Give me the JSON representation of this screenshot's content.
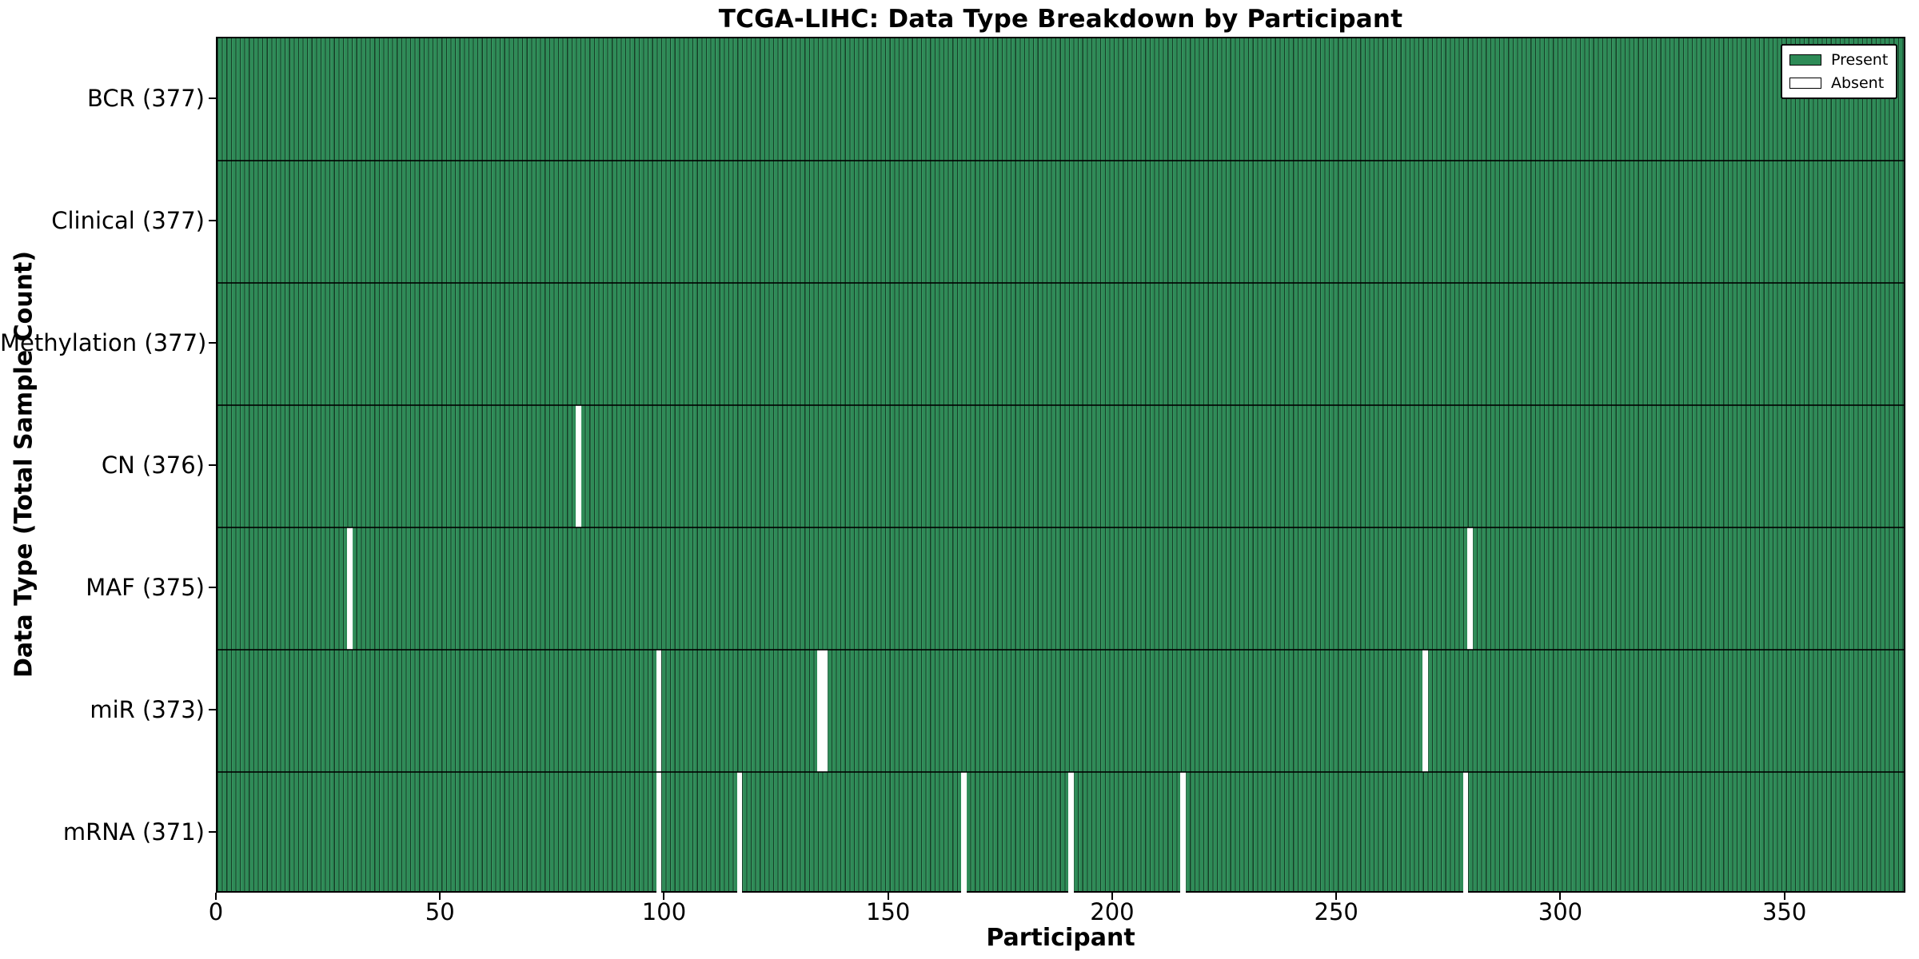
{
  "title": "TCGA-LIHC: Data Type Breakdown by Participant",
  "x_axis_title": "Participant",
  "y_axis_title": "Data Type (Total Sample Count)",
  "legend": {
    "present_label": "Present",
    "absent_label": "Absent"
  },
  "colors": {
    "present": "#2e8b57",
    "absent": "#ffffff",
    "bar_edge": "#000000",
    "plot_border": "#000000"
  },
  "chart_data": {
    "type": "heatmap",
    "title": "TCGA-LIHC: Data Type Breakdown by Participant",
    "xlabel": "Participant",
    "ylabel": "Data Type (Total Sample Count)",
    "x_range": [
      0,
      377
    ],
    "x_ticks": [
      0,
      50,
      100,
      150,
      200,
      250,
      300,
      350
    ],
    "n_participants": 377,
    "legend_entries": [
      {
        "label": "Present",
        "color": "#2e8b57"
      },
      {
        "label": "Absent",
        "color": "#ffffff"
      }
    ],
    "legend_position": "upper right",
    "rows": [
      {
        "label": "BCR (377)",
        "data_type": "BCR",
        "total": 377,
        "absent_participants": []
      },
      {
        "label": "Clinical (377)",
        "data_type": "Clinical",
        "total": 377,
        "absent_participants": []
      },
      {
        "label": "Methylation (377)",
        "data_type": "Methylation",
        "total": 377,
        "absent_participants": []
      },
      {
        "label": "CN (376)",
        "data_type": "CN",
        "total": 376,
        "absent_participants": [
          80
        ]
      },
      {
        "label": "MAF (375)",
        "data_type": "MAF",
        "total": 375,
        "absent_participants": [
          29,
          279
        ]
      },
      {
        "label": "miR (373)",
        "data_type": "miR",
        "total": 373,
        "absent_participants": [
          98,
          134,
          135,
          269
        ]
      },
      {
        "label": "mRNA (371)",
        "data_type": "mRNA",
        "total": 371,
        "absent_participants": [
          98,
          116,
          166,
          190,
          215,
          278
        ]
      }
    ]
  }
}
